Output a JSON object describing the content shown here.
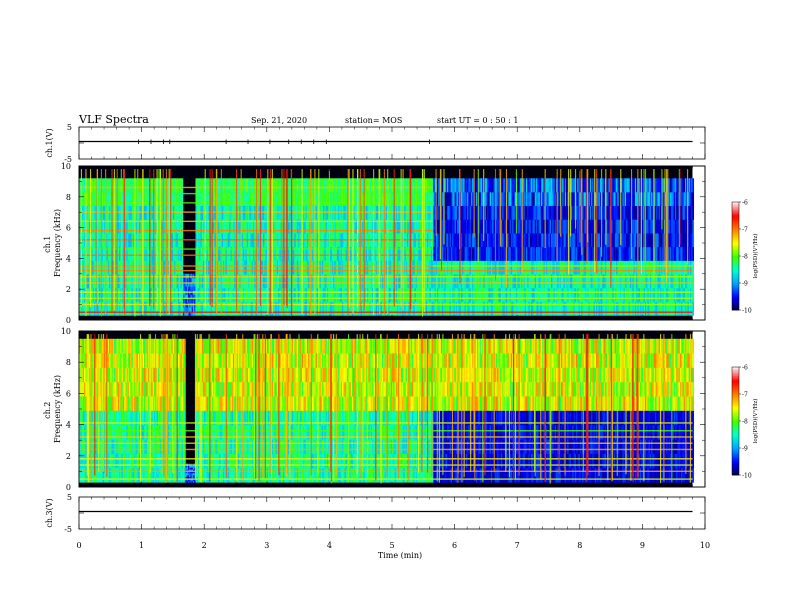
{
  "header": {
    "title": "VLF Spectra",
    "date": "Sep. 21, 2020",
    "station": "station= MOS",
    "start": "start  UT =   0  : 50 : 1"
  },
  "colors": {
    "colormap": [
      "#00003c",
      "#0000ff",
      "#00a0ff",
      "#00ffd0",
      "#40ff00",
      "#ffff00",
      "#ff8000",
      "#ff0000",
      "#ffe8e8"
    ]
  },
  "chart_data": [
    {
      "type": "line",
      "panel": "ch1-voltage",
      "ylabel": "ch.1(V)",
      "ylim": [
        -5,
        5
      ],
      "yticks": [
        "5",
        "-5"
      ],
      "series": [
        {
          "x": [
            0,
            9.8
          ],
          "y": [
            0,
            0
          ]
        }
      ],
      "spikes_x": [
        0.95,
        1.15,
        1.35,
        1.45,
        2.35,
        2.7,
        3.05,
        3.35,
        3.55,
        3.75,
        3.95,
        5.6
      ]
    },
    {
      "type": "heatmap",
      "panel": "ch1-spectrogram",
      "ylabel": "ch.1\nFrequency (kHz)",
      "ylim": [
        0,
        10
      ],
      "yticks": [
        "0",
        "2",
        "4",
        "6",
        "8",
        "10"
      ],
      "colorbar": {
        "label": "log(PSD)(V²/Hz)",
        "range": [
          -10,
          -6
        ],
        "ticks": [
          "-6",
          "-7",
          "-8",
          "-9",
          "-10"
        ]
      },
      "features": {
        "data_end_min": 9.8,
        "quiet_gap_min": [
          1.65,
          1.85
        ],
        "band_change_min": 5.65,
        "dense_band_khz": [
          0.5,
          9.2
        ],
        "dense_band_after_khz": [
          0.5,
          3.5
        ],
        "red_line_khz": 0.5
      }
    },
    {
      "type": "heatmap",
      "panel": "ch2-spectrogram",
      "ylabel": "ch.2\nFrequency (kHz)",
      "ylim": [
        0,
        10
      ],
      "yticks": [
        "0",
        "2",
        "4",
        "6",
        "8",
        "10"
      ],
      "colorbar": {
        "label": "log(PSD)(V²/Hz)",
        "range": [
          -10,
          -6
        ],
        "ticks": [
          "-6",
          "-7",
          "-8",
          "-9",
          "-10"
        ]
      },
      "features": {
        "data_end_min": 9.8,
        "quiet_gap_min": [
          1.7,
          1.85
        ],
        "band_change_min": 5.65,
        "emission_band_khz": [
          4.5,
          9.5
        ],
        "line_band_khz": [
          0.5,
          4.2
        ]
      }
    },
    {
      "type": "line",
      "panel": "ch3-voltage",
      "ylabel": "ch.3(V)",
      "ylim": [
        -5,
        5
      ],
      "yticks": [
        "5",
        "-5"
      ],
      "series": [
        {
          "x": [
            0,
            9.8
          ],
          "y": [
            0,
            0
          ]
        }
      ]
    }
  ],
  "xaxis": {
    "label": "Time (min)",
    "ticks": [
      "0",
      "1",
      "2",
      "3",
      "4",
      "5",
      "6",
      "7",
      "8",
      "9",
      "10"
    ],
    "range": [
      0,
      10
    ]
  }
}
